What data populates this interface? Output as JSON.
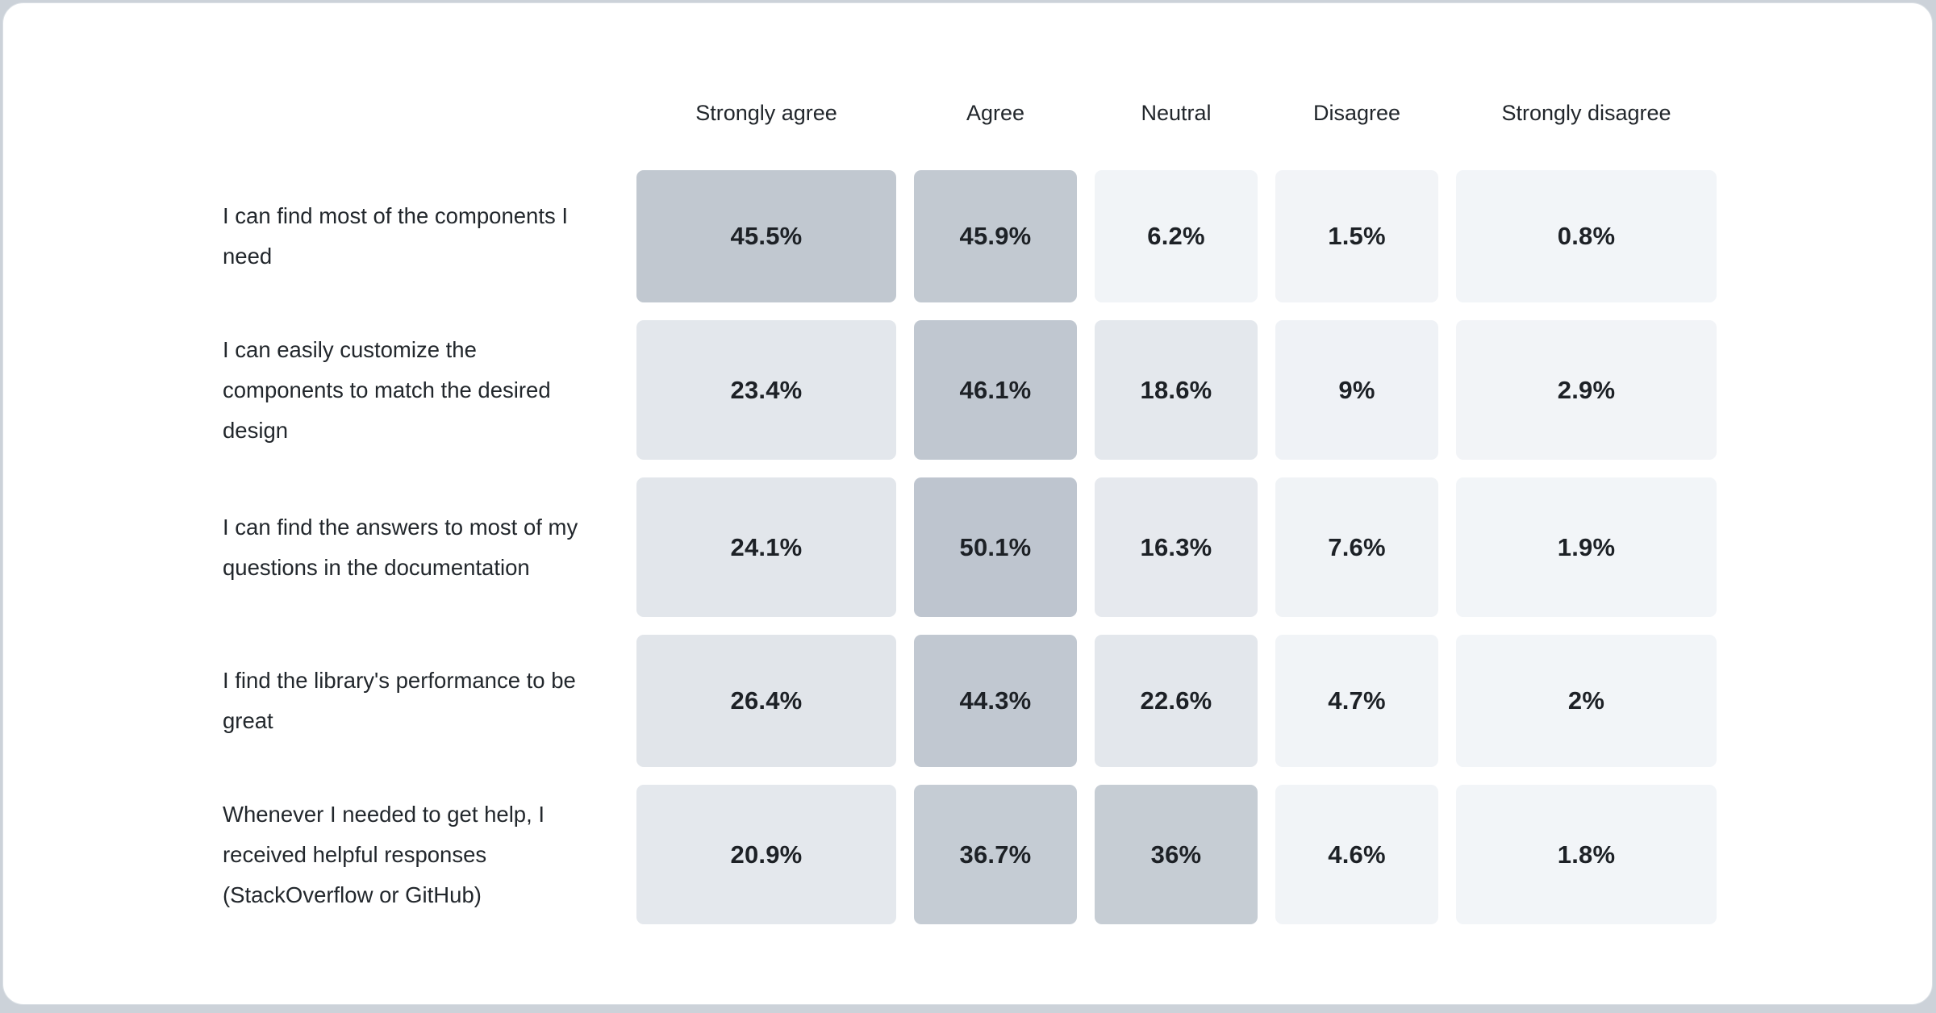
{
  "page": {
    "background_color": "#ccd2d9",
    "card_background": "#ffffff",
    "card_border_color": "#dbe0e5"
  },
  "table": {
    "columns": [
      "Strongly agree",
      "Agree",
      "Neutral",
      "Disagree",
      "Strongly disagree"
    ],
    "rows": [
      {
        "label": "I can find most of the components I need",
        "values": [
          "45.5%",
          "45.9%",
          "6.2%",
          "1.5%",
          "0.8%"
        ],
        "colors": [
          "#c1c8d0",
          "#c2c9d1",
          "#f1f4f7",
          "#f2f4f7",
          "#f2f5f8"
        ]
      },
      {
        "label": "I can easily customize the components to match the desired design",
        "values": [
          "23.4%",
          "46.1%",
          "18.6%",
          "9%",
          "2.9%"
        ],
        "colors": [
          "#e3e7ec",
          "#c0c7d0",
          "#e4e8ed",
          "#eff2f6",
          "#f2f4f7"
        ]
      },
      {
        "label": "I can find the answers to most of my questions in the documentation",
        "values": [
          "24.1%",
          "50.1%",
          "16.3%",
          "7.6%",
          "1.9%"
        ],
        "colors": [
          "#e2e6eb",
          "#bec5cf",
          "#e6e9ee",
          "#f0f3f6",
          "#f2f5f8"
        ]
      },
      {
        "label": "I find the library's performance to be great",
        "values": [
          "26.4%",
          "44.3%",
          "22.6%",
          "4.7%",
          "2%"
        ],
        "colors": [
          "#e1e5ea",
          "#c1c8d1",
          "#e3e7ec",
          "#f1f4f7",
          "#f2f5f8"
        ]
      },
      {
        "label": "Whenever I needed to get help, I received helpful responses (StackOverflow or GitHub)",
        "values": [
          "20.9%",
          "36.7%",
          "36%",
          "4.6%",
          "1.8%"
        ],
        "colors": [
          "#e4e8ed",
          "#c5ccd4",
          "#c6cdd4",
          "#f1f4f7",
          "#f2f5f8"
        ]
      }
    ]
  },
  "chart_data": {
    "type": "heatmap",
    "categories": [
      "Strongly agree",
      "Agree",
      "Neutral",
      "Disagree",
      "Strongly disagree"
    ],
    "series": [
      {
        "name": "I can find most of the components I need",
        "values": [
          45.5,
          45.9,
          6.2,
          1.5,
          0.8
        ]
      },
      {
        "name": "I can easily customize the components to match the desired design",
        "values": [
          23.4,
          46.1,
          18.6,
          9,
          2.9
        ]
      },
      {
        "name": "I can find the answers to most of my questions in the documentation",
        "values": [
          24.1,
          50.1,
          16.3,
          7.6,
          1.9
        ]
      },
      {
        "name": "I find the library's performance to be great",
        "values": [
          26.4,
          44.3,
          22.6,
          4.7,
          2
        ]
      },
      {
        "name": "Whenever I needed to get help, I received helpful responses (StackOverflow or GitHub)",
        "values": [
          20.9,
          36.7,
          36,
          4.6,
          1.8
        ]
      }
    ],
    "title": "",
    "xlabel": "",
    "ylabel": "",
    "value_unit": "%",
    "legend_position": "none",
    "grid": false,
    "color_low": "#f2f5f8",
    "color_high": "#bec5cf"
  }
}
